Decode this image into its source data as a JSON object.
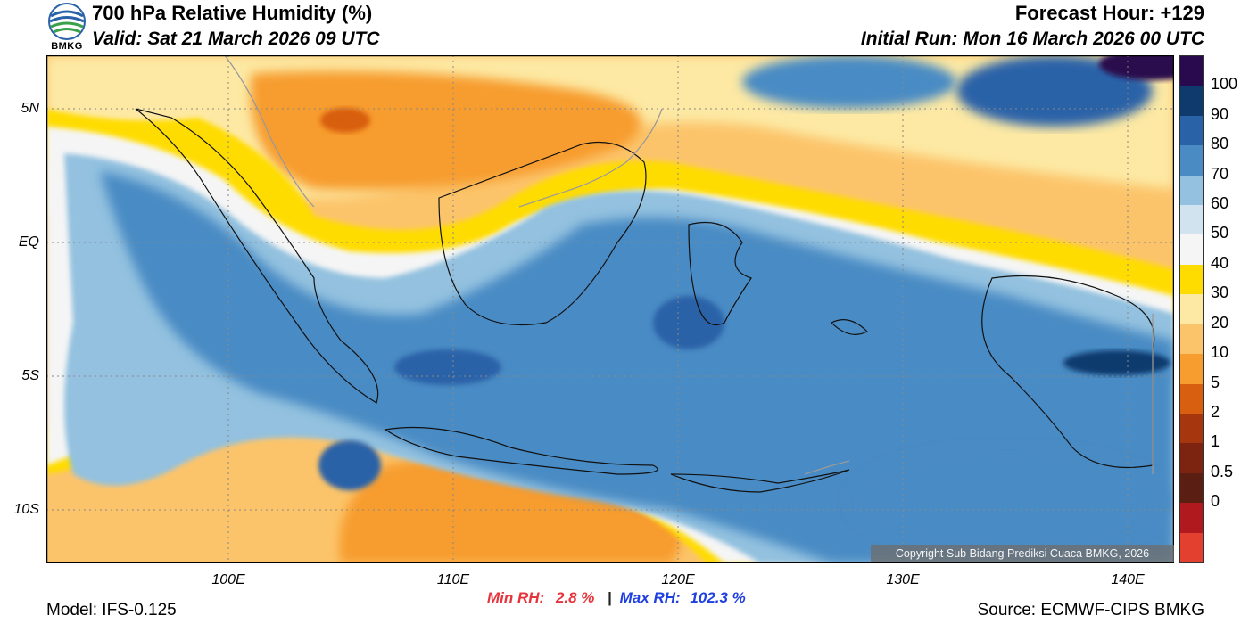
{
  "header": {
    "title": "700 hPa Relative Humidity (%)",
    "valid": "Valid: Sat 21 March 2026 09 UTC",
    "forecast_hour": "Forecast Hour: +129",
    "initial_run": "Initial Run: Mon 16 March 2026 00 UTC",
    "logo_text": "BMKG"
  },
  "map": {
    "lat_labels": [
      "5N",
      "EQ",
      "5S",
      "10S"
    ],
    "lon_labels": [
      "100E",
      "110E",
      "120E",
      "130E",
      "140E"
    ],
    "copyright": "Copyright Sub Bidang Prediksi Cuaca BMKG, 2026"
  },
  "stats": {
    "min_label": "Min RH:",
    "min_value": "2.8 %",
    "separator": "|",
    "max_label": "Max RH:",
    "max_value": "102.3 %"
  },
  "footer": {
    "model": "Model: IFS-0.125",
    "source": "Source: ECMWF-CIPS BMKG"
  },
  "colorbar": {
    "labels": [
      "100",
      "90",
      "80",
      "70",
      "60",
      "50",
      "40",
      "30",
      "20",
      "10",
      "5",
      "2",
      "1",
      "0.5",
      "0"
    ],
    "colors": [
      "#2a0a4e",
      "#0e3a6e",
      "#2a62a8",
      "#4a8bc4",
      "#93c1df",
      "#d2e3f0",
      "#f5f5f5",
      "#ffdc00",
      "#fde9a4",
      "#fcc46a",
      "#f79c2f",
      "#d85f10",
      "#a6360e",
      "#7c2410",
      "#5a1e12",
      "#b01a1e",
      "#e34030"
    ]
  },
  "colors": {
    "ocean_north": "#fcc46a",
    "ocean_south": "#f79c2f",
    "humid_core": "#4a8bc4",
    "coastline": "#111111"
  }
}
